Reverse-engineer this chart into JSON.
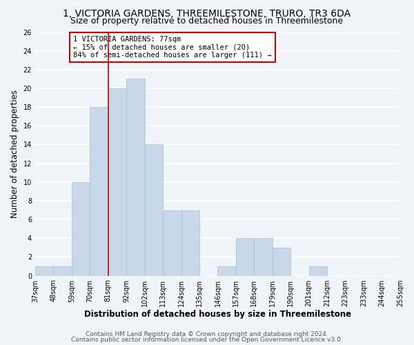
{
  "title": "1, VICTORIA GARDENS, THREEMILESTONE, TRURO, TR3 6DA",
  "subtitle": "Size of property relative to detached houses in Threemilestone",
  "xlabel": "Distribution of detached houses by size in Threemilestone",
  "ylabel": "Number of detached properties",
  "bar_color": "#c8d8eb",
  "bar_edge_color": "#a8bece",
  "bins": [
    "37sqm",
    "48sqm",
    "59sqm",
    "70sqm",
    "81sqm",
    "92sqm",
    "102sqm",
    "113sqm",
    "124sqm",
    "135sqm",
    "146sqm",
    "157sqm",
    "168sqm",
    "179sqm",
    "190sqm",
    "201sqm",
    "212sqm",
    "223sqm",
    "233sqm",
    "244sqm",
    "255sqm"
  ],
  "values": [
    1,
    1,
    10,
    18,
    20,
    21,
    14,
    7,
    7,
    0,
    1,
    4,
    4,
    3,
    0,
    1,
    0,
    0,
    0,
    0
  ],
  "ylim": [
    0,
    26
  ],
  "yticks": [
    0,
    2,
    4,
    6,
    8,
    10,
    12,
    14,
    16,
    18,
    20,
    22,
    24,
    26
  ],
  "property_line_x": 4,
  "property_line_color": "#cc0000",
  "annotation_title": "1 VICTORIA GARDENS: 77sqm",
  "annotation_line1": "← 15% of detached houses are smaller (20)",
  "annotation_line2": "84% of semi-detached houses are larger (111) →",
  "annotation_box_color": "#ffffff",
  "annotation_box_edge": "#cc0000",
  "footer1": "Contains HM Land Registry data © Crown copyright and database right 2024.",
  "footer2": "Contains public sector information licensed under the Open Government Licence v3.0.",
  "background_color": "#f0f4f8",
  "grid_color": "#ffffff",
  "title_fontsize": 10,
  "subtitle_fontsize": 9,
  "axis_label_fontsize": 8.5,
  "tick_fontsize": 7,
  "annotation_fontsize": 7.5,
  "footer_fontsize": 6.5
}
